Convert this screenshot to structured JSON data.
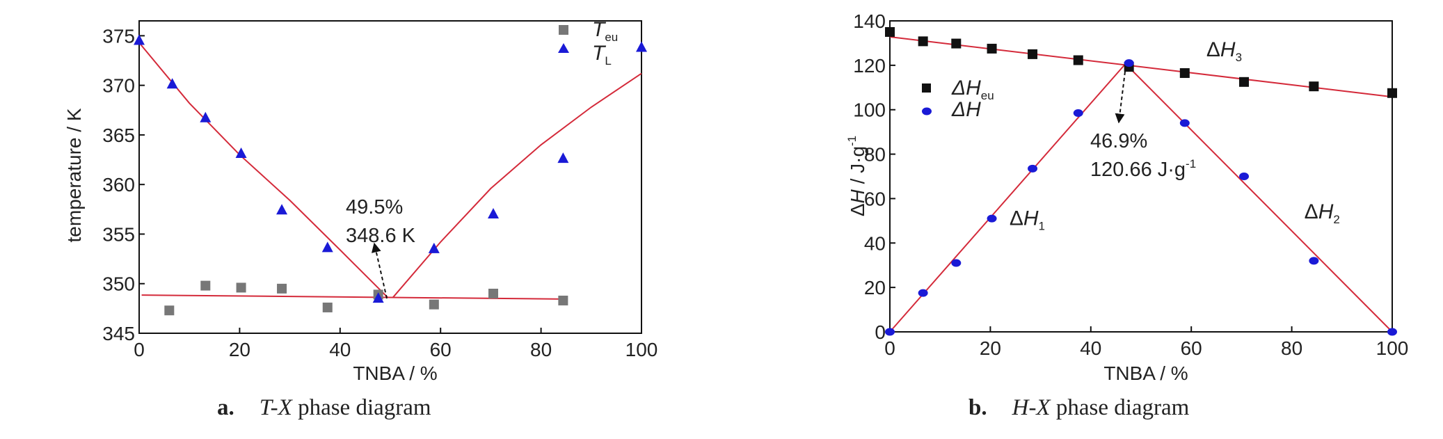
{
  "chart_data": [
    {
      "type": "scatter",
      "xlabel": "TNBA / %",
      "ylabel": "temperature / K",
      "xlim": [
        0,
        100
      ],
      "ylim": [
        345,
        376.5
      ],
      "xticks": [
        0,
        20,
        40,
        60,
        80,
        100
      ],
      "yticks": [
        345,
        350,
        355,
        360,
        365,
        370,
        375
      ],
      "legend_placement": "top-right",
      "series": [
        {
          "name": "T_eu",
          "label_main": "T",
          "label_sub": "eu",
          "marker": "square",
          "color": "#777777",
          "x": [
            6.0,
            13.2,
            20.3,
            28.4,
            37.5,
            47.6,
            58.7,
            70.5,
            84.4
          ],
          "y": [
            347.3,
            349.8,
            349.6,
            349.5,
            347.6,
            348.9,
            347.9,
            349.0,
            348.3
          ]
        },
        {
          "name": "T_L",
          "label_main": "T",
          "label_sub": "L",
          "marker": "triangle",
          "color": "#1a1ad6",
          "x": [
            0,
            6.6,
            13.2,
            20.3,
            28.4,
            37.5,
            47.6,
            58.7,
            70.5,
            84.4,
            100
          ],
          "y": [
            374.5,
            370.1,
            366.7,
            363.1,
            357.4,
            353.6,
            348.5,
            353.5,
            357.0,
            362.6,
            373.8
          ]
        }
      ],
      "fit_lines": {
        "color": "#d42a3a",
        "liquidus_left": {
          "x": [
            0,
            10,
            20,
            30,
            40,
            49.5
          ],
          "y": [
            374.3,
            368.2,
            363.0,
            358.4,
            353.4,
            348.6
          ]
        },
        "liquidus_right": {
          "x": [
            50.5,
            60,
            70,
            80,
            90,
            100
          ],
          "y": [
            348.6,
            354.2,
            359.6,
            364.0,
            367.8,
            371.2
          ]
        },
        "eutectic": {
          "x": [
            0.5,
            84.4
          ],
          "y": [
            348.85,
            348.45
          ]
        }
      },
      "annotation": {
        "line1": "49.5%",
        "line2": "348.6 K",
        "x": 49.5,
        "y": 348.6
      },
      "caption": {
        "letter": "a.",
        "italic": "T-X",
        "rest": " phase diagram"
      }
    },
    {
      "type": "scatter",
      "xlabel": "TNBA / %",
      "ylabel_italic": "H",
      "ylabel_rest": " / J·g",
      "ylabel_sup": "-1",
      "xlim": [
        0,
        100
      ],
      "ylim": [
        0,
        140
      ],
      "xticks": [
        0,
        20,
        40,
        60,
        80,
        100
      ],
      "yticks": [
        0,
        20,
        40,
        60,
        80,
        100,
        120,
        140
      ],
      "legend_placement": "top-left",
      "series": [
        {
          "name": "ΔH_eu",
          "label_main": "ΔH",
          "label_sub": "eu",
          "marker": "square",
          "color": "#111111",
          "x": [
            0,
            6.6,
            13.2,
            20.3,
            28.4,
            37.5,
            47.6,
            58.7,
            70.5,
            84.4,
            100
          ],
          "y": [
            135.0,
            130.8,
            129.8,
            127.5,
            125.0,
            122.3,
            119.3,
            116.5,
            112.5,
            110.5,
            107.5
          ]
        },
        {
          "name": "ΔH",
          "label_main": "ΔH",
          "label_sub": "",
          "marker": "circle",
          "color": "#1a1ad6",
          "x": [
            0,
            6.6,
            13.2,
            20.3,
            28.4,
            37.5,
            47.6,
            58.7,
            70.5,
            84.4,
            100
          ],
          "y": [
            0,
            17.5,
            31.0,
            51.0,
            73.5,
            98.5,
            121.0,
            94.0,
            70.0,
            32.0,
            0
          ]
        }
      ],
      "fit_lines": {
        "color": "#d42a3a",
        "dH1": {
          "x": [
            0,
            46.9
          ],
          "y": [
            0,
            120.66
          ]
        },
        "dH2": {
          "x": [
            46.9,
            100
          ],
          "y": [
            120.66,
            0
          ]
        },
        "dH3": {
          "x": [
            0,
            100
          ],
          "y": [
            132.8,
            105.8
          ]
        }
      },
      "line_labels": [
        {
          "main": "ΔH",
          "sub": "1",
          "x": 23.8,
          "y": 48
        },
        {
          "main": "ΔH",
          "sub": "2",
          "x": 82.5,
          "y": 51
        },
        {
          "main": "ΔH",
          "sub": "3",
          "x": 63,
          "y": 124
        }
      ],
      "annotation": {
        "line1": "46.9%",
        "line2": "120.66 J·g",
        "line2_sup": "-1",
        "x": 46.9,
        "y": 120.66
      },
      "caption": {
        "letter": "b.",
        "italic": "H-X",
        "rest": " phase diagram"
      }
    }
  ]
}
